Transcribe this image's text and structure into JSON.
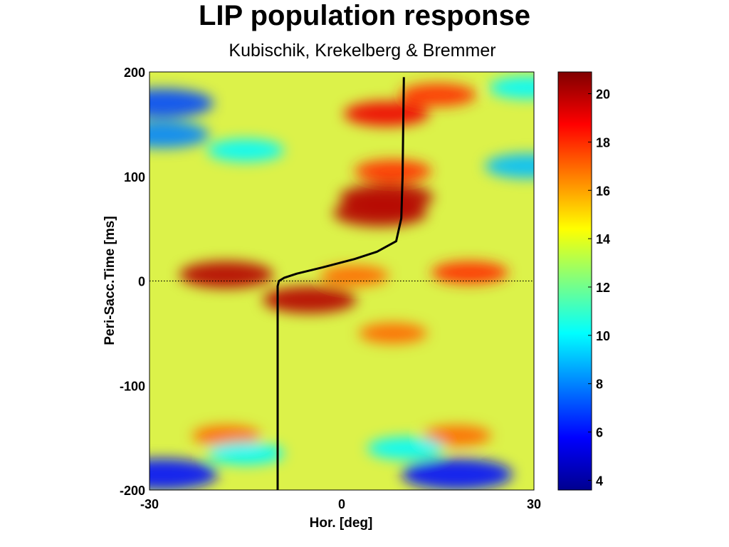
{
  "title": "LIP population response",
  "subtitle": "Kubischik, Krekelberg & Bremmer",
  "chart_data": {
    "type": "heatmap",
    "xlabel": "Hor. [deg]",
    "ylabel": "Peri-Sacc.Time [ms]",
    "xlim": [
      -30,
      30
    ],
    "ylim": [
      -200,
      200
    ],
    "xticks": [
      "-30",
      "0",
      "30"
    ],
    "yticks": [
      "200",
      "100",
      "0",
      "-100",
      "-200"
    ],
    "colorbar": {
      "range": [
        3.6,
        20.9
      ],
      "ticks": [
        "20",
        "18",
        "16",
        "14",
        "12",
        "10",
        "8",
        "6",
        "4"
      ],
      "colormap": "jet"
    },
    "reference_line": {
      "y": 0,
      "style": "dotted"
    },
    "saccade_trace": {
      "x": [
        -10,
        -10,
        -10,
        -9.8,
        -9,
        -7,
        -3,
        2,
        5.5,
        8.5,
        9.3,
        9.5,
        9.6,
        9.7
      ],
      "y": [
        -200,
        -100,
        -5,
        0,
        3,
        7,
        13,
        21,
        28,
        38,
        60,
        100,
        150,
        195
      ]
    },
    "response_features": [
      {
        "x": -18,
        "y": 6,
        "value": 20
      },
      {
        "x": -5,
        "y": -18,
        "value": 20
      },
      {
        "x": 6,
        "y": 65,
        "value": 20
      },
      {
        "x": 7,
        "y": 80,
        "value": 20
      },
      {
        "x": 7,
        "y": 160,
        "value": 19
      },
      {
        "x": 15,
        "y": 178,
        "value": 18
      },
      {
        "x": 20,
        "y": 8,
        "value": 18
      },
      {
        "x": 8,
        "y": 105,
        "value": 18
      },
      {
        "x": -18,
        "y": -148,
        "value": 17
      },
      {
        "x": 18,
        "y": -148,
        "value": 17
      },
      {
        "x": 8,
        "y": -50,
        "value": 17
      },
      {
        "x": 2,
        "y": 5,
        "value": 17
      },
      {
        "x": -28,
        "y": 170,
        "value": 7
      },
      {
        "x": -28,
        "y": 140,
        "value": 8
      },
      {
        "x": -15,
        "y": 125,
        "value": 10
      },
      {
        "x": -28,
        "y": -185,
        "value": 6
      },
      {
        "x": 18,
        "y": -185,
        "value": 6
      },
      {
        "x": 29,
        "y": 110,
        "value": 9
      },
      {
        "x": 29,
        "y": 185,
        "value": 10
      },
      {
        "x": -15,
        "y": -165,
        "value": 10
      },
      {
        "x": 10,
        "y": -160,
        "value": 10
      }
    ]
  }
}
